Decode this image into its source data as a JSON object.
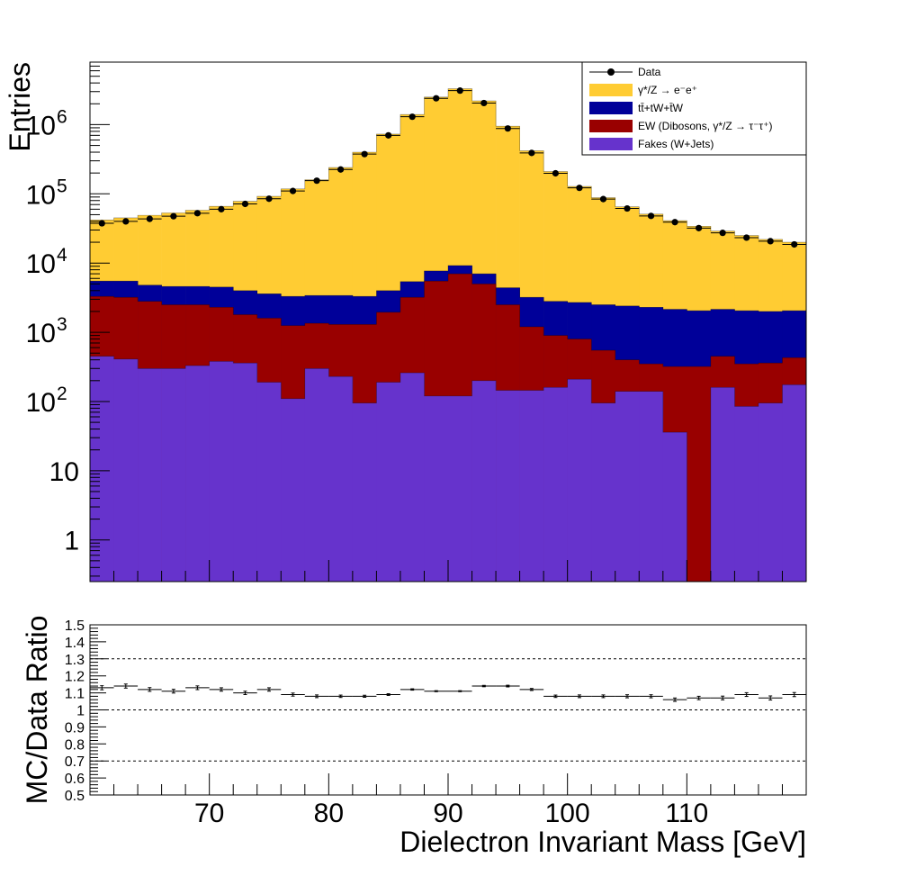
{
  "chart_data": [
    {
      "type": "stacked-histogram",
      "ylabel": "Entries",
      "yscale": "log",
      "ylim": [
        0.25,
        8000000
      ],
      "xlim": [
        60,
        120
      ],
      "bin_width": 2,
      "bin_centers": [
        61,
        63,
        65,
        67,
        69,
        71,
        73,
        75,
        77,
        79,
        81,
        83,
        85,
        87,
        89,
        91,
        93,
        95,
        97,
        99,
        101,
        103,
        105,
        107,
        109,
        111,
        113,
        115,
        117,
        119
      ],
      "y_ticks": [
        {
          "value": 1,
          "label": "1"
        },
        {
          "value": 10,
          "label": "10"
        },
        {
          "value": 100,
          "label": "10",
          "exp": "2"
        },
        {
          "value": 1000,
          "label": "10",
          "exp": "3"
        },
        {
          "value": 10000,
          "label": "10",
          "exp": "4"
        },
        {
          "value": 100000,
          "label": "10",
          "exp": "5"
        },
        {
          "value": 1000000,
          "label": "10",
          "exp": "6"
        }
      ],
      "legend": {
        "position": "top-right",
        "entries": [
          {
            "label": "Data",
            "kind": "marker"
          },
          {
            "label": "γ*/Z → e⁻e⁺",
            "kind": "fill",
            "series": "zee"
          },
          {
            "label": "tt̄+tW+t̄W",
            "kind": "fill",
            "series": "top"
          },
          {
            "label": "EW (Dibosons, γ*/Z → τ⁻τ⁺)",
            "kind": "fill",
            "series": "ew"
          },
          {
            "label": "Fakes (W+Jets)",
            "kind": "fill",
            "series": "fakes"
          }
        ]
      },
      "stack_cumulative": [
        {
          "name": "fakes",
          "color": "#6633cc",
          "values": [
            450,
            410,
            300,
            300,
            330,
            380,
            360,
            190,
            110,
            300,
            230,
            95,
            190,
            260,
            120,
            120,
            200,
            145,
            145,
            160,
            210,
            95,
            140,
            140,
            36,
            0.01,
            160,
            85,
            95,
            175
          ]
        },
        {
          "name": "ew",
          "color": "#990000",
          "values": [
            3300,
            3200,
            2800,
            2500,
            2500,
            2300,
            1800,
            1600,
            1250,
            1350,
            1300,
            1300,
            1950,
            3200,
            5500,
            7000,
            5000,
            2500,
            1200,
            900,
            800,
            550,
            400,
            350,
            320,
            320,
            450,
            350,
            360,
            430
          ]
        },
        {
          "name": "top",
          "color": "#000099",
          "values": [
            5500,
            5500,
            4800,
            4600,
            4600,
            4500,
            4000,
            3600,
            3300,
            3400,
            3400,
            3300,
            4000,
            5400,
            7700,
            9200,
            7000,
            4400,
            3200,
            2800,
            2700,
            2500,
            2400,
            2300,
            2150,
            2050,
            2150,
            2050,
            2000,
            2050
          ]
        },
        {
          "name": "zee",
          "color": "#ffcc33",
          "values": [
            42000,
            45000,
            49000,
            53000,
            58000,
            66000,
            78000,
            92000,
            118000,
            160000,
            240000,
            400000,
            730000,
            1400000,
            2500000,
            3300000,
            2200000,
            950000,
            420000,
            210000,
            128000,
            88000,
            65000,
            51000,
            41000,
            34000,
            29000,
            25000,
            22000,
            20000
          ]
        }
      ],
      "data": {
        "name": "Data",
        "marker_color": "#000000",
        "values": [
          37500,
          40000,
          43500,
          47500,
          52500,
          60000,
          71500,
          85000,
          110000,
          155000,
          225000,
          375000,
          700000,
          1300000,
          2400000,
          3100000,
          2050000,
          880000,
          390000,
          198000,
          122000,
          84000,
          61500,
          48000,
          39000,
          32000,
          27300,
          23300,
          20700,
          18600
        ]
      }
    },
    {
      "type": "ratio",
      "ylabel": "MC/Data Ratio",
      "ylim": [
        0.5,
        1.5
      ],
      "y_ticks": [
        "0.5",
        "0.6",
        "0.7",
        "0.8",
        "0.9",
        "1",
        "1.1",
        "1.2",
        "1.3",
        "1.4",
        "1.5"
      ],
      "reference_lines": [
        0.7,
        1.0,
        1.3
      ],
      "xlabel": "Dielectron Invariant Mass [GeV]",
      "x_ticks": [
        "70",
        "80",
        "90",
        "100",
        "110"
      ],
      "values": [
        1.13,
        1.14,
        1.12,
        1.11,
        1.13,
        1.12,
        1.1,
        1.12,
        1.09,
        1.08,
        1.08,
        1.08,
        1.09,
        1.12,
        1.11,
        1.11,
        1.14,
        1.14,
        1.12,
        1.08,
        1.08,
        1.08,
        1.08,
        1.08,
        1.06,
        1.07,
        1.07,
        1.09,
        1.07,
        1.09
      ],
      "errors": [
        0.012,
        0.012,
        0.011,
        0.011,
        0.011,
        0.01,
        0.01,
        0.01,
        0.009,
        0.008,
        0.007,
        0.006,
        0.005,
        0.004,
        0.003,
        0.003,
        0.004,
        0.005,
        0.006,
        0.007,
        0.008,
        0.008,
        0.009,
        0.009,
        0.01,
        0.01,
        0.011,
        0.011,
        0.012,
        0.012
      ]
    }
  ]
}
